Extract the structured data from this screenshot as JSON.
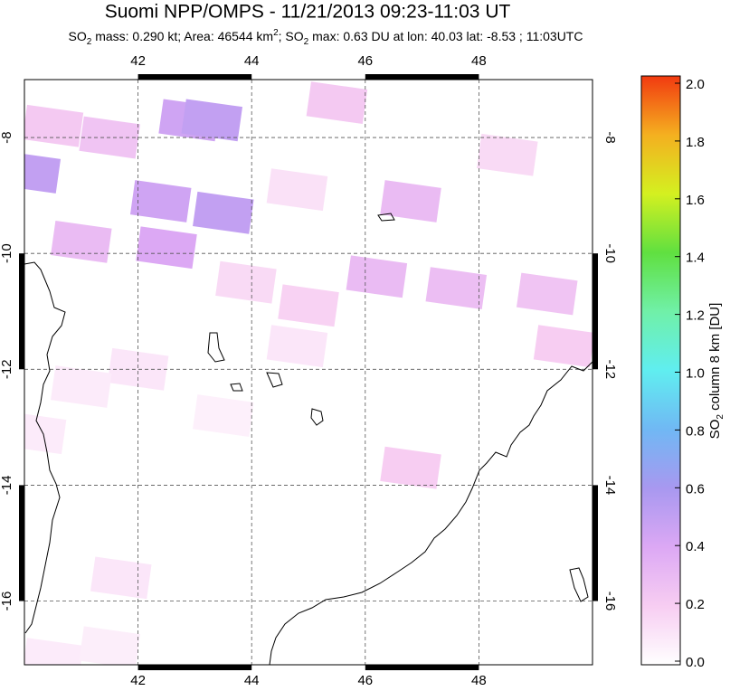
{
  "chart_data": {
    "type": "map",
    "title": "Suomi NPP/OMPS - 11/21/2013 09:23-11:03 UT",
    "subtitle": [
      "SO",
      "2",
      " mass: 0.290 kt; Area: 46544 km",
      "2",
      "; SO",
      "2",
      " max: 0.63 DU at lon: 40.03 lat: -8.53 ; 11:03UTC"
    ],
    "xlim": [
      40,
      50
    ],
    "xticks": [
      42,
      44,
      46,
      48
    ],
    "ylim": [
      -17.1,
      -7
    ],
    "yticks": [
      -8,
      -10,
      -12,
      -14,
      -16
    ],
    "grid": true,
    "colorbar": {
      "label": [
        "SO",
        "2",
        " column 8 km [DU]"
      ],
      "lim": [
        0,
        2
      ],
      "ticks": [
        {
          "value": 0,
          "label": "0.0"
        },
        {
          "value": 0.2,
          "label": "0.2"
        },
        {
          "value": 0.4,
          "label": "0.4"
        },
        {
          "value": 0.6,
          "label": "0.6"
        },
        {
          "value": 0.8,
          "label": "0.8"
        },
        {
          "value": 1,
          "label": "1.0"
        },
        {
          "value": 1.2,
          "label": "1.2"
        },
        {
          "value": 1.4,
          "label": "1.4"
        },
        {
          "value": 1.6,
          "label": "1.6"
        },
        {
          "value": 1.8,
          "label": "1.8"
        },
        {
          "value": 2,
          "label": "2.0"
        }
      ]
    },
    "cells": [
      {
        "lon": 40.1,
        "lat": -8.6,
        "value": 0.5
      },
      {
        "lon": 42.9,
        "lat": -7.7,
        "value": 0.45
      },
      {
        "lon": 43.3,
        "lat": -7.7,
        "value": 0.5
      },
      {
        "lon": 42.4,
        "lat": -9.1,
        "value": 0.45
      },
      {
        "lon": 43.5,
        "lat": -9.3,
        "value": 0.5
      },
      {
        "lon": 42.5,
        "lat": -9.9,
        "value": 0.4
      },
      {
        "lon": 41,
        "lat": -9.8,
        "value": 0.3
      },
      {
        "lon": 41.5,
        "lat": -8,
        "value": 0.25
      },
      {
        "lon": 40.5,
        "lat": -7.8,
        "value": 0.22
      },
      {
        "lon": 45.5,
        "lat": -7.4,
        "value": 0.22
      },
      {
        "lon": 46.8,
        "lat": -9.1,
        "value": 0.3
      },
      {
        "lon": 46.2,
        "lat": -10.4,
        "value": 0.3
      },
      {
        "lon": 47.6,
        "lat": -10.6,
        "value": 0.28
      },
      {
        "lon": 49.2,
        "lat": -10.7,
        "value": 0.25
      },
      {
        "lon": 48.5,
        "lat": -8.3,
        "value": 0.15
      },
      {
        "lon": 44.8,
        "lat": -8.9,
        "value": 0.12
      },
      {
        "lon": 43.9,
        "lat": -10.5,
        "value": 0.15
      },
      {
        "lon": 45,
        "lat": -10.9,
        "value": 0.18
      },
      {
        "lon": 49.5,
        "lat": -11.6,
        "value": 0.2
      },
      {
        "lon": 46.8,
        "lat": -13.7,
        "value": 0.2
      },
      {
        "lon": 42,
        "lat": -12,
        "value": 0.1
      },
      {
        "lon": 41,
        "lat": -12.3,
        "value": 0.08
      },
      {
        "lon": 43.5,
        "lat": -12.8,
        "value": 0.06
      },
      {
        "lon": 40.2,
        "lat": -13.1,
        "value": 0.08
      },
      {
        "lon": 41.7,
        "lat": -15.6,
        "value": 0.1
      },
      {
        "lon": 40.5,
        "lat": -17,
        "value": 0.08
      },
      {
        "lon": 41.5,
        "lat": -16.8,
        "value": 0.07
      },
      {
        "lon": 44.8,
        "lat": -11.6,
        "value": 0.1
      }
    ]
  }
}
